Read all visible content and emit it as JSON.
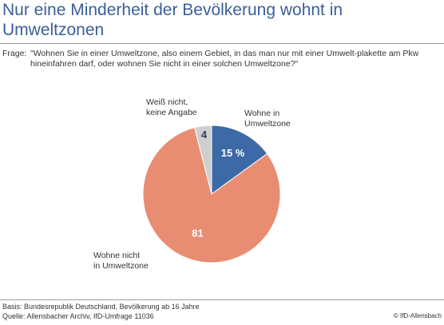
{
  "title": "Nur eine Minderheit der Bevölkerung wohnt in Umweltzonen",
  "question": {
    "label": "Frage:",
    "text": "\"Wohnen Sie in einer Umweltzone, also einem Gebiet, in das man nur mit einer Umwelt-plakette am Pkw hineinfahren darf, oder wohnen Sie nicht in einer solchen Umweltzone?\""
  },
  "footer": {
    "basis": "Basis: Bundesrepublik Deutschland, Bevölkerung ab 16 Jahre",
    "quelle": "Quelle: Allensbacher Archiv, IfD-Umfrage 11036"
  },
  "copyright": "© IfD-Allensbach",
  "chart_data": {
    "type": "pie",
    "slices": [
      {
        "label": "Wohne in Umweltzone",
        "value": 15,
        "value_label": "15 %",
        "color": "#3d6aa6",
        "text_color": "#ffffff"
      },
      {
        "label": "Wohne nicht in Umweltzone",
        "value": 81,
        "value_label": "81",
        "color": "#e88d72",
        "text_color": "#ffffff"
      },
      {
        "label": "Weiß nicht, keine Angabe",
        "value": 4,
        "value_label": "4",
        "color": "#cfcfcf",
        "text_color": "#2b3f66"
      }
    ]
  }
}
